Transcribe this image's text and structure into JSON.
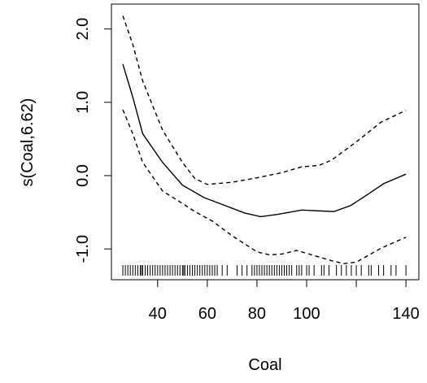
{
  "chart_data": {
    "type": "line",
    "xlabel": "Coal",
    "ylabel": "s(Coal,6.62)",
    "xlim": [
      21.4,
      145.2
    ],
    "ylim": [
      -1.42,
      2.34
    ],
    "xticks": [
      40,
      60,
      80,
      100,
      {
        "value": 120,
        "label": null
      },
      140
    ],
    "yticks": [
      {
        "value": 2,
        "label": "2.0"
      },
      {
        "value": 1,
        "label": "1.0"
      },
      {
        "value": 0,
        "label": "0.0"
      },
      {
        "value": -1,
        "label": "-1.0"
      }
    ],
    "series": [
      {
        "color": "#000000",
        "linestyle": "solid",
        "x": [
          26,
          30,
          34,
          42,
          50,
          58.7,
          65,
          75,
          81.5,
          88,
          98,
          104.5,
          111,
          117.6,
          124,
          131,
          140
        ],
        "values": [
          1.52,
          1.07,
          0.57,
          0.18,
          -0.13,
          -0.3,
          -0.38,
          -0.51,
          -0.56,
          -0.53,
          -0.47,
          -0.48,
          -0.49,
          -0.41,
          -0.27,
          -0.11,
          0.02
        ]
      },
      {
        "color": "#000000",
        "linestyle": "dashed",
        "x": [
          26,
          30,
          34,
          42,
          50,
          55,
          60,
          70,
          80,
          90,
          98,
          105,
          110,
          120,
          130,
          140
        ],
        "values": [
          2.18,
          1.79,
          1.29,
          0.62,
          0.18,
          -0.04,
          -0.12,
          -0.09,
          -0.03,
          0.04,
          0.12,
          0.14,
          0.21,
          0.46,
          0.73,
          0.89
        ]
      },
      {
        "color": "#000000",
        "linestyle": "dashed",
        "x": [
          26,
          30,
          34,
          42,
          50,
          55,
          62,
          70,
          80,
          85,
          90,
          96,
          100,
          110,
          115,
          120,
          130,
          140
        ],
        "values": [
          0.9,
          0.57,
          0.18,
          -0.21,
          -0.38,
          -0.49,
          -0.62,
          -0.82,
          -1.04,
          -1.08,
          -1.07,
          -1.02,
          -1.06,
          -1.16,
          -1.2,
          -1.18,
          -0.99,
          -0.84
        ]
      }
    ],
    "rug": [
      26,
      27,
      28,
      29,
      30,
      31,
      32,
      33,
      33.5,
      34,
      35,
      36,
      37,
      38,
      39,
      40,
      41,
      42,
      43,
      44,
      45,
      46,
      47,
      48,
      49,
      50,
      50.5,
      51,
      52,
      53,
      54,
      55,
      56,
      57,
      58,
      59,
      60,
      61,
      62,
      63,
      64,
      66,
      68,
      72,
      74,
      76,
      78,
      79,
      80,
      81,
      82,
      83,
      84,
      85,
      86,
      87,
      88,
      89,
      90,
      91,
      92,
      93,
      94,
      96,
      97,
      98,
      100,
      101,
      103,
      106,
      107,
      109,
      112,
      114,
      116,
      118,
      120,
      122,
      125,
      126,
      129,
      131,
      134,
      136,
      140
    ]
  }
}
